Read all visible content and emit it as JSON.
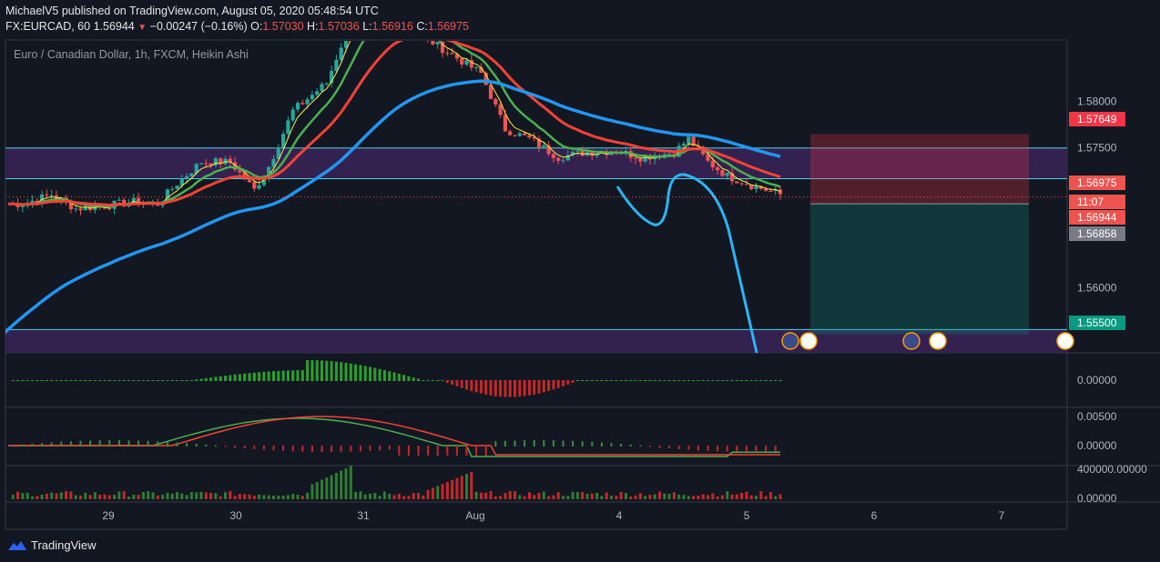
{
  "header": {
    "publisher_line": "MichaelV5 published on TradingView.com, August 05, 2020 05:48:54 UTC",
    "symbol": "FX:EURCAD, 60",
    "last": "1.56944",
    "change_arrow": "▼",
    "change": "−0.00247 (−0.16%)",
    "o_label": "O:",
    "o": "1.57030",
    "h_label": "H:",
    "h": "1.57036",
    "l_label": "L:",
    "l": "1.56916",
    "c_label": "C:",
    "c": "1.56975"
  },
  "series_title": "Euro / Canadian Dollar, 1h, FXCM, Heikin Ashi",
  "brand": "TradingView",
  "colors": {
    "bg": "#131722",
    "grid_sep": "#363a45",
    "bull": "#26a69a",
    "bear": "#ef5350",
    "ema_fast": "#4caf50",
    "ema_slow": "#f44336",
    "ema_yellow": "#ffeb3b",
    "ma_long": "#2196f3",
    "zone": "#3a2458",
    "zone_line": "#4dd0e1",
    "projection": "#29b6f6"
  },
  "chart_data": {
    "type": "candlestick",
    "title": "Euro / Canadian Dollar, 1h, FXCM, Heikin Ashi",
    "x_ticks": [
      "29",
      "30",
      "31",
      "Aug",
      "4",
      "5",
      "6",
      "7"
    ],
    "y_ticks": [
      "1.58000",
      "1.57500",
      "1.56000"
    ],
    "ylim": [
      1.553,
      1.5865
    ],
    "price_labels": [
      {
        "text": "1.57649",
        "value": 1.57649,
        "color": "#f23645"
      },
      {
        "text": "1.56975",
        "value": 1.56975,
        "color": "#ef5350"
      },
      {
        "text": "11:07",
        "value": 1.5685,
        "color": "#ef5350"
      },
      {
        "text": "1.56944",
        "value": 1.56944,
        "color": "#ef5350"
      },
      {
        "text": "1.56858",
        "value": 1.56858,
        "color": "#787b86"
      },
      {
        "text": "1.55500",
        "value": 1.555,
        "color": "#089981"
      }
    ],
    "zones": [
      {
        "from": 1.5717,
        "to": 1.575
      },
      {
        "from": 1.552,
        "to": 1.5555
      }
    ],
    "position": {
      "entry": 1.569,
      "stop": 1.57649,
      "target": 1.555
    },
    "close_keypoints": [
      [
        0,
        1.569
      ],
      [
        3,
        1.569
      ],
      [
        9,
        1.57
      ],
      [
        14,
        1.5685
      ],
      [
        20,
        1.5688
      ],
      [
        27,
        1.5693
      ],
      [
        31,
        1.569
      ],
      [
        35,
        1.5712
      ],
      [
        40,
        1.5735
      ],
      [
        46,
        1.5735
      ],
      [
        51,
        1.5705
      ],
      [
        54,
        1.573
      ],
      [
        59,
        1.579
      ],
      [
        66,
        1.582
      ],
      [
        72,
        1.59
      ],
      [
        79,
        1.591
      ],
      [
        86,
        1.587
      ],
      [
        92,
        1.585
      ],
      [
        98,
        1.583
      ],
      [
        103,
        1.577
      ],
      [
        108,
        1.576
      ],
      [
        114,
        1.574
      ],
      [
        119,
        1.5745
      ],
      [
        126,
        1.5747
      ],
      [
        131,
        1.574
      ],
      [
        138,
        1.5745
      ],
      [
        141,
        1.576
      ],
      [
        145,
        1.5735
      ],
      [
        149,
        1.572
      ],
      [
        154,
        1.571
      ],
      [
        160,
        1.57
      ]
    ],
    "indicators": [
      {
        "name": "pane1",
        "y_tick": "0.00000"
      },
      {
        "name": "pane2",
        "y_ticks": [
          "0.00500",
          "0.00000"
        ]
      },
      {
        "name": "pane3",
        "y_ticks": [
          "400000.00000",
          "0.00000"
        ]
      }
    ]
  }
}
